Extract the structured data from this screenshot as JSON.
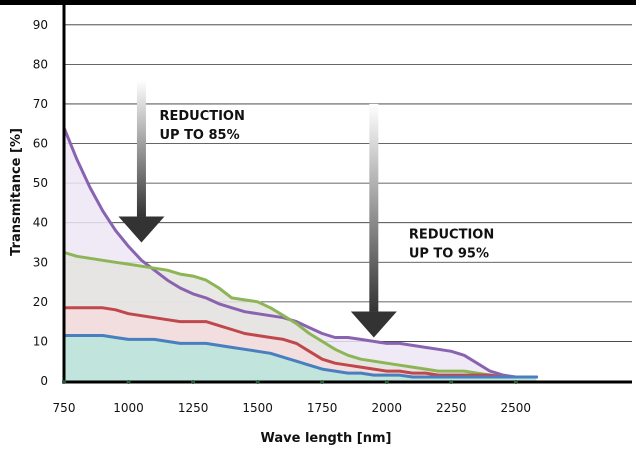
{
  "chart_data": {
    "type": "area",
    "title": "",
    "xlabel": "Wave length [nm]",
    "ylabel": "Transmitance [%]",
    "xlim": [
      750,
      2950
    ],
    "ylim": [
      0,
      95
    ],
    "x_ticks": [
      750,
      1000,
      1250,
      1500,
      1750,
      2000,
      2250,
      2500
    ],
    "y_ticks": [
      0,
      10,
      20,
      30,
      40,
      50,
      60,
      70,
      80,
      90
    ],
    "grid": true,
    "series": [
      {
        "color": "#8a63b0",
        "fill": "#ece6f3",
        "x": [
          750,
          800,
          850,
          900,
          950,
          1000,
          1050,
          1100,
          1150,
          1200,
          1250,
          1300,
          1350,
          1400,
          1450,
          1500,
          1550,
          1600,
          1650,
          1700,
          1750,
          1800,
          1850,
          1900,
          1950,
          2000,
          2050,
          2100,
          2150,
          2200,
          2250,
          2300,
          2350,
          2400,
          2450,
          2500,
          2550,
          2580
        ],
        "values": [
          64,
          56,
          49,
          43,
          38,
          34,
          30.5,
          28,
          25.5,
          23.5,
          22,
          21,
          19.5,
          18.5,
          17.5,
          17,
          16.5,
          16,
          15,
          13.5,
          12,
          11,
          11,
          10.5,
          10,
          9.5,
          9.5,
          9,
          8.5,
          8,
          7.5,
          6.5,
          4.5,
          2.5,
          1.5,
          1,
          1,
          1
        ]
      },
      {
        "color": "#8db556",
        "fill": "#e4e4e0",
        "x": [
          750,
          800,
          850,
          900,
          950,
          1000,
          1050,
          1100,
          1150,
          1200,
          1250,
          1300,
          1350,
          1400,
          1450,
          1500,
          1550,
          1600,
          1650,
          1700,
          1750,
          1800,
          1850,
          1900,
          1950,
          2000,
          2050,
          2100,
          2150,
          2200,
          2250,
          2300,
          2350,
          2400,
          2450,
          2500,
          2550,
          2580
        ],
        "values": [
          32.5,
          31.5,
          31,
          30.5,
          30,
          29.5,
          29,
          28.5,
          28,
          27,
          26.5,
          25.5,
          23.5,
          21,
          20.5,
          20,
          18.5,
          16.5,
          14.5,
          12,
          10,
          8,
          6.5,
          5.5,
          5,
          4.5,
          4,
          3.5,
          3,
          2.5,
          2.5,
          2.5,
          2,
          1.5,
          1,
          1,
          1,
          1
        ]
      },
      {
        "color": "#c0484c",
        "fill": "#f3dddd",
        "x": [
          750,
          800,
          850,
          900,
          950,
          1000,
          1050,
          1100,
          1150,
          1200,
          1250,
          1300,
          1350,
          1400,
          1450,
          1500,
          1550,
          1600,
          1650,
          1700,
          1750,
          1800,
          1850,
          1900,
          1950,
          2000,
          2050,
          2100,
          2150,
          2200,
          2250,
          2300,
          2350,
          2400,
          2450,
          2500,
          2550,
          2580
        ],
        "values": [
          18.5,
          18.5,
          18.5,
          18.5,
          18,
          17,
          16.5,
          16,
          15.5,
          15,
          15,
          15,
          14,
          13,
          12,
          11.5,
          11,
          10.5,
          9.5,
          7.5,
          5.5,
          4.5,
          4,
          3.5,
          3,
          2.5,
          2.5,
          2,
          2,
          1.5,
          1.5,
          1.5,
          1.5,
          1.5,
          1,
          1,
          1,
          1
        ]
      },
      {
        "color": "#4a7fbf",
        "fill": "#b8e6dc",
        "x": [
          750,
          800,
          850,
          900,
          950,
          1000,
          1050,
          1100,
          1150,
          1200,
          1250,
          1300,
          1350,
          1400,
          1450,
          1500,
          1550,
          1600,
          1650,
          1700,
          1750,
          1800,
          1850,
          1900,
          1950,
          2000,
          2050,
          2100,
          2150,
          2200,
          2250,
          2300,
          2350,
          2400,
          2450,
          2500,
          2550,
          2580
        ],
        "values": [
          11.5,
          11.5,
          11.5,
          11.5,
          11,
          10.5,
          10.5,
          10.5,
          10,
          9.5,
          9.5,
          9.5,
          9,
          8.5,
          8,
          7.5,
          7,
          6,
          5,
          4,
          3,
          2.5,
          2,
          2,
          1.5,
          1.5,
          1.5,
          1,
          1,
          1,
          1,
          1,
          1,
          1,
          1,
          1,
          1,
          1
        ]
      }
    ],
    "annotations": [
      {
        "text_lines": [
          "REDUCTION",
          "UP TO 85%"
        ],
        "arrow_x": 1050,
        "arrow_from": 76,
        "arrow_to": 35
      },
      {
        "text_lines": [
          "REDUCTION",
          "UP TO  95%"
        ],
        "arrow_x": 1950,
        "arrow_from": 70,
        "arrow_to": 11
      }
    ]
  }
}
